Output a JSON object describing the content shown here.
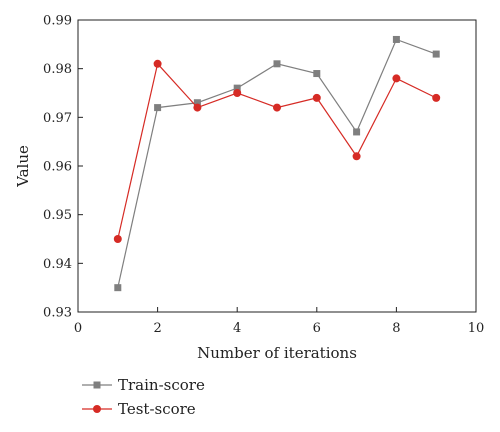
{
  "chart_data": {
    "type": "line",
    "title": "",
    "xlabel": "Number of iterations",
    "ylabel": "Value",
    "xlim": [
      0,
      10
    ],
    "ylim": [
      0.93,
      0.99
    ],
    "xticks": [
      0,
      2,
      4,
      6,
      8,
      10
    ],
    "yticks": [
      0.93,
      0.94,
      0.95,
      0.96,
      0.97,
      0.98,
      0.99
    ],
    "xtick_labels": [
      "0",
      "2",
      "4",
      "6",
      "8",
      "10"
    ],
    "ytick_labels": [
      "0.93",
      "0.94",
      "0.95",
      "0.96",
      "0.97",
      "0.98",
      "0.99"
    ],
    "grid": false,
    "legend_position": "bottom-left",
    "x": [
      1,
      2,
      3,
      4,
      5,
      6,
      7,
      8,
      9
    ],
    "series": [
      {
        "name": "Train-score",
        "color": "#7f7f7f",
        "marker": "square",
        "values": [
          0.935,
          0.972,
          0.973,
          0.976,
          0.981,
          0.979,
          0.967,
          0.986,
          0.983
        ]
      },
      {
        "name": "Test-score",
        "color": "#d62b25",
        "marker": "circle",
        "values": [
          0.945,
          0.981,
          0.972,
          0.975,
          0.972,
          0.974,
          0.962,
          0.978,
          0.974
        ]
      }
    ]
  }
}
